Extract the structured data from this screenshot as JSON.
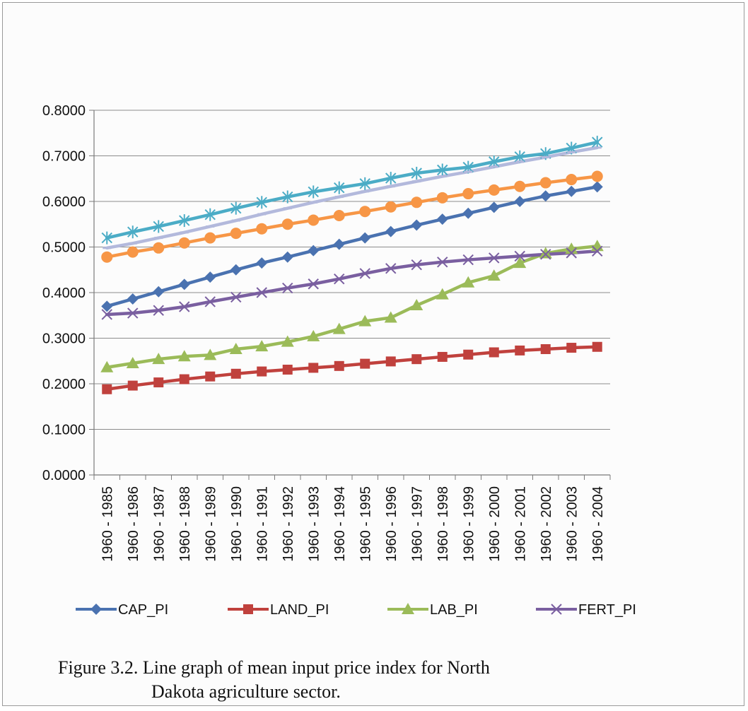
{
  "chart_data": {
    "type": "line",
    "title": "",
    "xlabel": "",
    "ylabel": "",
    "ylim": [
      0,
      0.8
    ],
    "yticks": [
      "0.0000",
      "0.1000",
      "0.2000",
      "0.3000",
      "0.4000",
      "0.5000",
      "0.6000",
      "0.7000",
      "0.8000"
    ],
    "grid": true,
    "legend_position": "bottom",
    "categories": [
      "1960 - 1985",
      "1960 - 1986",
      "1960 - 1987",
      "1960 - 1988",
      "1960 - 1989",
      "1960 - 1990",
      "1960 - 1991",
      "1960 - 1992",
      "1960 - 1993",
      "1960 - 1994",
      "1960 - 1995",
      "1960 - 1996",
      "1960 - 1997",
      "1960 - 1998",
      "1960 - 1999",
      "1960 - 2000",
      "1960 - 2001",
      "1960 - 2002",
      "1960 - 2003",
      "1960 - 2004"
    ],
    "series": [
      {
        "name": "CAP_PI",
        "color": "#4a72b0",
        "marker": "diamond",
        "values": [
          0.37,
          0.386,
          0.402,
          0.418,
          0.434,
          0.45,
          0.465,
          0.478,
          0.492,
          0.506,
          0.52,
          0.534,
          0.548,
          0.561,
          0.574,
          0.587,
          0.6,
          0.612,
          0.622,
          0.632
        ]
      },
      {
        "name": "LAND_PI",
        "color": "#c0413d",
        "marker": "square",
        "values": [
          0.188,
          0.196,
          0.203,
          0.21,
          0.216,
          0.222,
          0.227,
          0.231,
          0.235,
          0.239,
          0.244,
          0.249,
          0.254,
          0.259,
          0.264,
          0.269,
          0.273,
          0.276,
          0.279,
          0.281
        ]
      },
      {
        "name": "LAB_PI",
        "color": "#9bbb59",
        "marker": "triangle",
        "values": [
          0.236,
          0.245,
          0.254,
          0.26,
          0.263,
          0.276,
          0.282,
          0.292,
          0.304,
          0.32,
          0.337,
          0.345,
          0.372,
          0.396,
          0.422,
          0.437,
          0.465,
          0.486,
          0.496,
          0.502
        ]
      },
      {
        "name": "FERT_PI",
        "color": "#7a5fa0",
        "marker": "x",
        "values": [
          0.352,
          0.355,
          0.361,
          0.369,
          0.38,
          0.39,
          0.4,
          0.41,
          0.419,
          0.43,
          0.442,
          0.453,
          0.461,
          0.467,
          0.472,
          0.476,
          0.48,
          0.484,
          0.487,
          0.491
        ]
      },
      {
        "name": "",
        "color": "#4bacc6",
        "marker": "star",
        "values": [
          0.52,
          0.533,
          0.545,
          0.558,
          0.571,
          0.585,
          0.598,
          0.61,
          0.621,
          0.63,
          0.639,
          0.651,
          0.662,
          0.669,
          0.675,
          0.687,
          0.698,
          0.705,
          0.717,
          0.73
        ]
      },
      {
        "name": "",
        "color": "#f79646",
        "marker": "circle",
        "values": [
          0.478,
          0.489,
          0.498,
          0.509,
          0.52,
          0.53,
          0.54,
          0.55,
          0.559,
          0.569,
          0.578,
          0.588,
          0.598,
          0.608,
          0.617,
          0.625,
          0.633,
          0.641,
          0.648,
          0.655
        ]
      },
      {
        "name": "",
        "color": "#b3b9dc",
        "marker": "dash",
        "values": [
          0.498,
          0.508,
          0.52,
          0.532,
          0.545,
          0.558,
          0.572,
          0.585,
          0.598,
          0.61,
          0.622,
          0.633,
          0.644,
          0.655,
          0.665,
          0.676,
          0.687,
          0.697,
          0.708,
          0.718
        ]
      }
    ]
  },
  "caption": {
    "line1": "Figure 3.2. Line graph of mean input price index for North",
    "line2": "Dakota agriculture sector."
  }
}
